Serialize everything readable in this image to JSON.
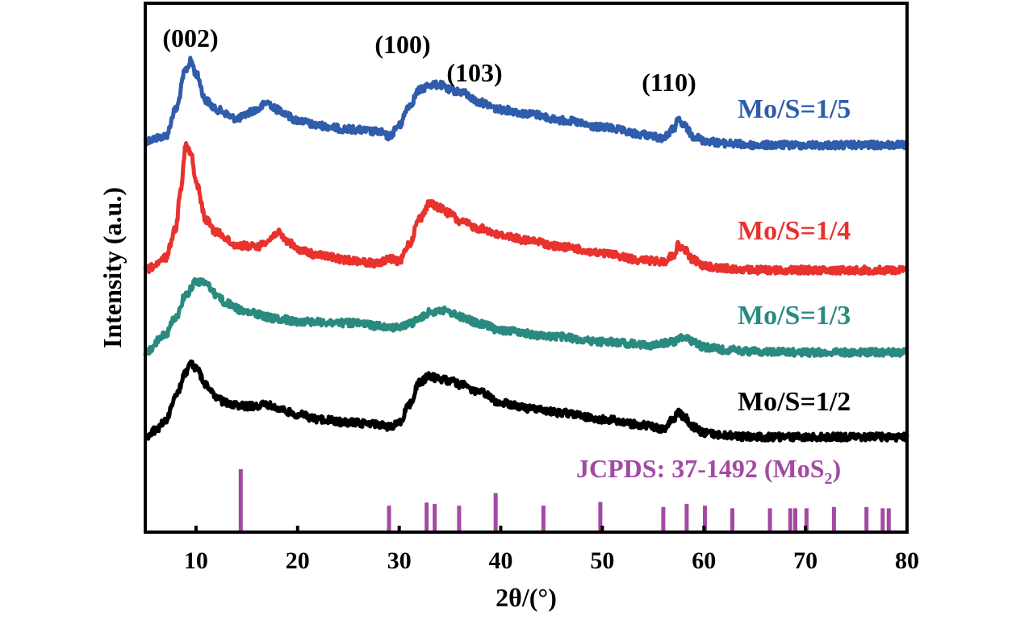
{
  "chart_data": {
    "type": "line",
    "xlabel": "2θ/(°)",
    "ylabel": "Intensity (a.u.)",
    "xlim": [
      5,
      80
    ],
    "xticks": [
      10,
      20,
      30,
      40,
      50,
      60,
      70,
      80
    ],
    "xtick_labels": [
      "10",
      "20",
      "30",
      "40",
      "50",
      "60",
      "70",
      "80"
    ],
    "grid": false,
    "peak_labels": [
      {
        "label": "(002)",
        "x": 9.5
      },
      {
        "label": "(100)",
        "x": 30.5
      },
      {
        "label": "(103)",
        "x": 37.5
      },
      {
        "label": "(110)",
        "x": 58.3
      }
    ],
    "series": [
      {
        "name": "Mo/S=1/5",
        "color": "#2f5dab",
        "x": [
          5,
          7,
          8,
          9,
          9.5,
          10,
          11,
          12,
          14,
          16,
          17,
          18,
          20,
          22,
          25,
          28,
          29,
          30,
          31,
          32,
          33,
          34,
          35,
          36,
          38,
          40,
          43,
          46,
          50,
          54,
          56,
          57,
          57.5,
          58,
          59,
          60,
          62,
          65,
          70,
          75,
          80
        ],
        "y": [
          0.05,
          0.1,
          0.4,
          0.85,
          0.95,
          0.8,
          0.5,
          0.4,
          0.3,
          0.4,
          0.48,
          0.4,
          0.28,
          0.22,
          0.18,
          0.15,
          0.1,
          0.22,
          0.45,
          0.62,
          0.68,
          0.68,
          0.62,
          0.6,
          0.48,
          0.4,
          0.35,
          0.28,
          0.2,
          0.12,
          0.08,
          0.18,
          0.28,
          0.22,
          0.1,
          0.05,
          0.02,
          0.0,
          0.0,
          0.0,
          0.0
        ]
      },
      {
        "name": "Mo/S=1/4",
        "color": "#e8322e",
        "x": [
          5,
          6,
          7,
          8,
          8.5,
          9,
          9.5,
          10,
          11,
          12,
          14,
          16,
          17,
          18,
          19,
          20,
          22,
          25,
          28,
          29,
          30,
          31,
          32,
          33,
          34,
          35,
          36,
          38,
          40,
          43,
          46,
          50,
          54,
          56,
          57,
          57.5,
          58,
          59,
          60,
          62,
          65,
          70,
          75,
          80
        ],
        "y": [
          0.0,
          0.05,
          0.15,
          0.5,
          1.0,
          1.5,
          1.4,
          1.05,
          0.6,
          0.45,
          0.3,
          0.28,
          0.35,
          0.45,
          0.35,
          0.25,
          0.18,
          0.12,
          0.08,
          0.14,
          0.1,
          0.32,
          0.62,
          0.8,
          0.75,
          0.68,
          0.58,
          0.5,
          0.42,
          0.35,
          0.28,
          0.2,
          0.12,
          0.1,
          0.18,
          0.3,
          0.25,
          0.12,
          0.05,
          0.02,
          0.0,
          0.0,
          0.0,
          0.0
        ]
      },
      {
        "name": "Mo/S=1/3",
        "color": "#2a8a80",
        "x": [
          5,
          7,
          8,
          9,
          10,
          11,
          12,
          13,
          15,
          18,
          20,
          25,
          28,
          30,
          31,
          32,
          33,
          34,
          35,
          36,
          38,
          40,
          45,
          50,
          55,
          57,
          58,
          59,
          60,
          62,
          65,
          70,
          75,
          80
        ],
        "y": [
          0.0,
          0.2,
          0.4,
          0.65,
          0.8,
          0.78,
          0.65,
          0.55,
          0.45,
          0.38,
          0.35,
          0.33,
          0.3,
          0.28,
          0.32,
          0.38,
          0.45,
          0.48,
          0.45,
          0.4,
          0.32,
          0.25,
          0.18,
          0.12,
          0.08,
          0.12,
          0.18,
          0.12,
          0.06,
          0.03,
          0.01,
          0.0,
          0.0,
          0.0
        ]
      },
      {
        "name": "Mo/S=1/2",
        "color": "#000000",
        "x": [
          5,
          6,
          7,
          8,
          9,
          9.5,
          10,
          11,
          12,
          13,
          15,
          17,
          18,
          20,
          22,
          25,
          28,
          29,
          30,
          31,
          32,
          33,
          34,
          35,
          36,
          38,
          40,
          43,
          46,
          50,
          54,
          56,
          57,
          57.5,
          58,
          59,
          60,
          62,
          65,
          70,
          75,
          80
        ],
        "y": [
          0.0,
          0.08,
          0.2,
          0.5,
          0.8,
          0.9,
          0.85,
          0.65,
          0.48,
          0.42,
          0.38,
          0.4,
          0.35,
          0.28,
          0.22,
          0.18,
          0.16,
          0.12,
          0.18,
          0.4,
          0.68,
          0.75,
          0.72,
          0.7,
          0.65,
          0.55,
          0.42,
          0.35,
          0.3,
          0.22,
          0.15,
          0.1,
          0.22,
          0.3,
          0.25,
          0.12,
          0.05,
          0.02,
          0.0,
          0.0,
          0.0,
          0.0
        ]
      }
    ],
    "reference": {
      "label_text": "JCPDS: 37-1492 (MoS",
      "label_subscript": "2",
      "label_close": ")",
      "color": "#a349a4",
      "peaks_2theta": [
        14.4,
        29.0,
        32.7,
        33.5,
        35.9,
        39.5,
        44.2,
        49.8,
        56.0,
        58.3,
        60.1,
        62.8,
        66.5,
        68.5,
        69.0,
        70.1,
        72.8,
        76.0,
        77.6,
        78.2
      ],
      "relative_intensity": [
        100,
        42,
        47,
        45,
        42,
        62,
        42,
        48,
        40,
        45,
        42,
        38,
        38,
        38,
        38,
        38,
        40,
        40,
        38,
        38
      ]
    }
  }
}
